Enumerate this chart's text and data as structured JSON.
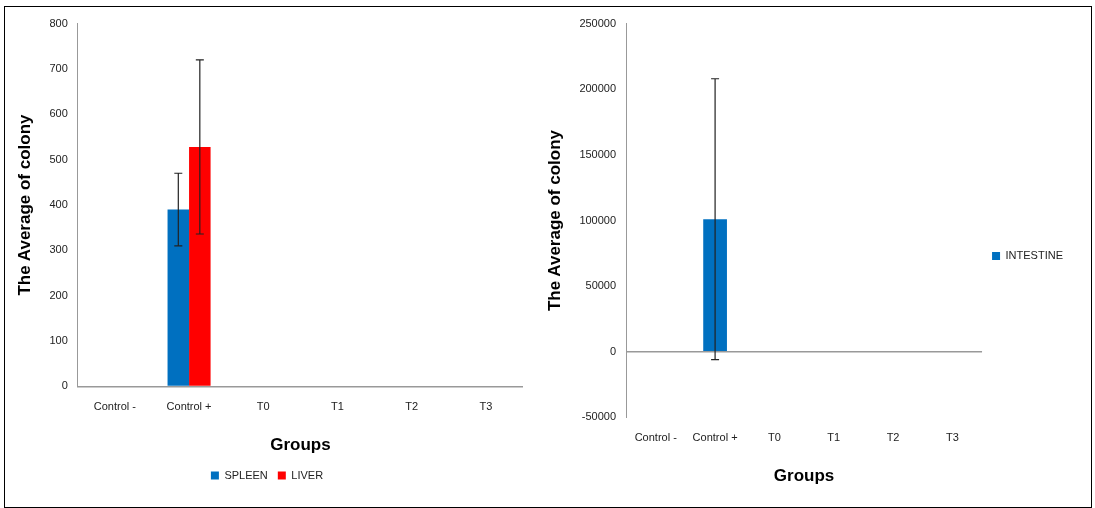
{
  "chart_data": [
    {
      "type": "bar",
      "xlabel": "Groups",
      "ylabel": "The Average of colony",
      "categories": [
        "Control -",
        "Control +",
        "T0",
        "T1",
        "T2",
        "T3"
      ],
      "series": [
        {
          "name": "SPLEEN",
          "color": "#0070c0",
          "values": [
            0,
            390,
            0,
            0,
            0,
            0
          ],
          "errors": [
            null,
            80,
            null,
            null,
            null,
            null
          ]
        },
        {
          "name": "LIVER",
          "color": "#ff0000",
          "values": [
            0,
            528,
            0,
            0,
            0,
            0
          ],
          "errors": [
            null,
            192,
            null,
            null,
            null,
            null
          ]
        }
      ],
      "ylim": [
        0,
        800
      ],
      "yticks": [
        0,
        100,
        200,
        300,
        400,
        500,
        600,
        700,
        800
      ],
      "grid": false,
      "legend": "bottom"
    },
    {
      "type": "bar",
      "xlabel": "Groups",
      "ylabel": "The Average of colony",
      "categories": [
        "Control -",
        "Control +",
        "T0",
        "T1",
        "T2",
        "T3"
      ],
      "series": [
        {
          "name": "INTESTINE",
          "color": "#0070c0",
          "values": [
            0,
            101000,
            0,
            0,
            0,
            0
          ],
          "errors": [
            null,
            107000,
            null,
            null,
            null,
            null
          ]
        }
      ],
      "ylim": [
        -50000,
        250000
      ],
      "yticks": [
        -50000,
        0,
        50000,
        100000,
        150000,
        200000,
        250000
      ],
      "grid": false,
      "legend": "right"
    }
  ]
}
